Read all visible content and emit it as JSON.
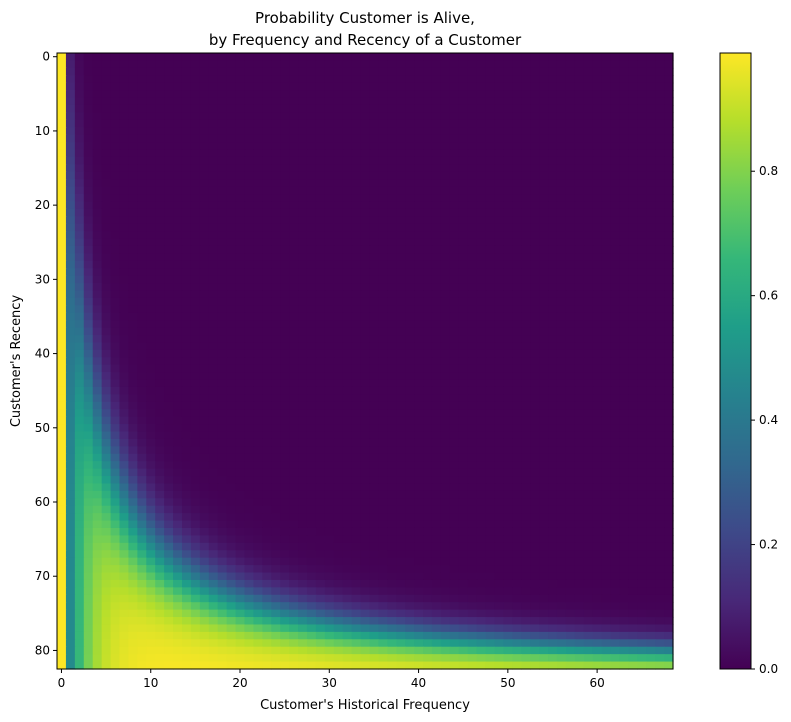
{
  "chart_data": {
    "type": "heatmap",
    "title": [
      "Probability Customer is Alive,",
      "by Frequency and Recency of a Customer"
    ],
    "xlabel": "Customer's Historical Frequency",
    "ylabel": "Customer's Recency",
    "x_ticks": [
      0,
      10,
      20,
      30,
      40,
      50,
      60
    ],
    "y_ticks": [
      0,
      10,
      20,
      30,
      40,
      50,
      60,
      70,
      80
    ],
    "xlim": [
      -0.5,
      68.5
    ],
    "ylim": [
      82.5,
      -0.5
    ],
    "grid": false,
    "frequency_range": [
      0,
      68
    ],
    "recency_range": [
      0,
      82
    ],
    "colormap": "viridis",
    "colorbar": {
      "range": [
        0.0,
        0.99
      ],
      "ticks": [
        0.0,
        0.2,
        0.4,
        0.6,
        0.8
      ],
      "tick_labels": [
        "0.0",
        "0.2",
        "0.4",
        "0.6",
        "0.8"
      ]
    },
    "colormap_stops": [
      "#440154",
      "#482878",
      "#3e4989",
      "#31688e",
      "#26828e",
      "#1f9e89",
      "#35b779",
      "#6ece58",
      "#b5de2b",
      "#fde725"
    ]
  }
}
